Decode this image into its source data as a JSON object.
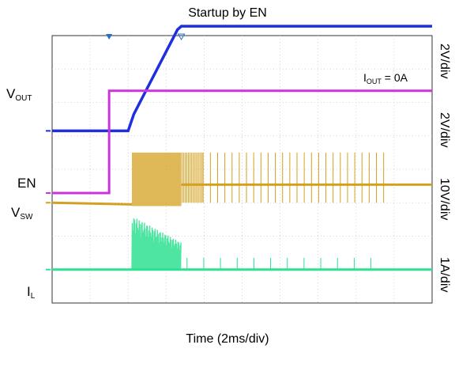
{
  "chart_data": {
    "type": "line",
    "title": "Startup by EN",
    "xlabel": "Time (2ms/div)",
    "annotation": "IOUT = 0A",
    "grid": true,
    "x_divisions": 10,
    "y_divisions": 8,
    "series": [
      {
        "name": "VOUT",
        "scale": "2V/div",
        "color": "#1f2fe0",
        "level_low_div": 1.15,
        "level_high_div": 4.28
      },
      {
        "name": "EN",
        "scale": "2V/div",
        "color": "#cc33dd",
        "level_low_div": -0.71,
        "level_high_div": 2.35
      },
      {
        "name": "VSW",
        "scale": "10V/div",
        "color": "#d4a020",
        "level_low_div": -1.0,
        "level_mid_div": -0.46
      },
      {
        "name": "IL",
        "scale": "1A/div",
        "color": "#2ee090",
        "level_low_div": -3.0
      }
    ],
    "events_ms": {
      "en_rise": 0.0,
      "ramp_start": 1.2,
      "ramp_end": 3.8
    }
  }
}
